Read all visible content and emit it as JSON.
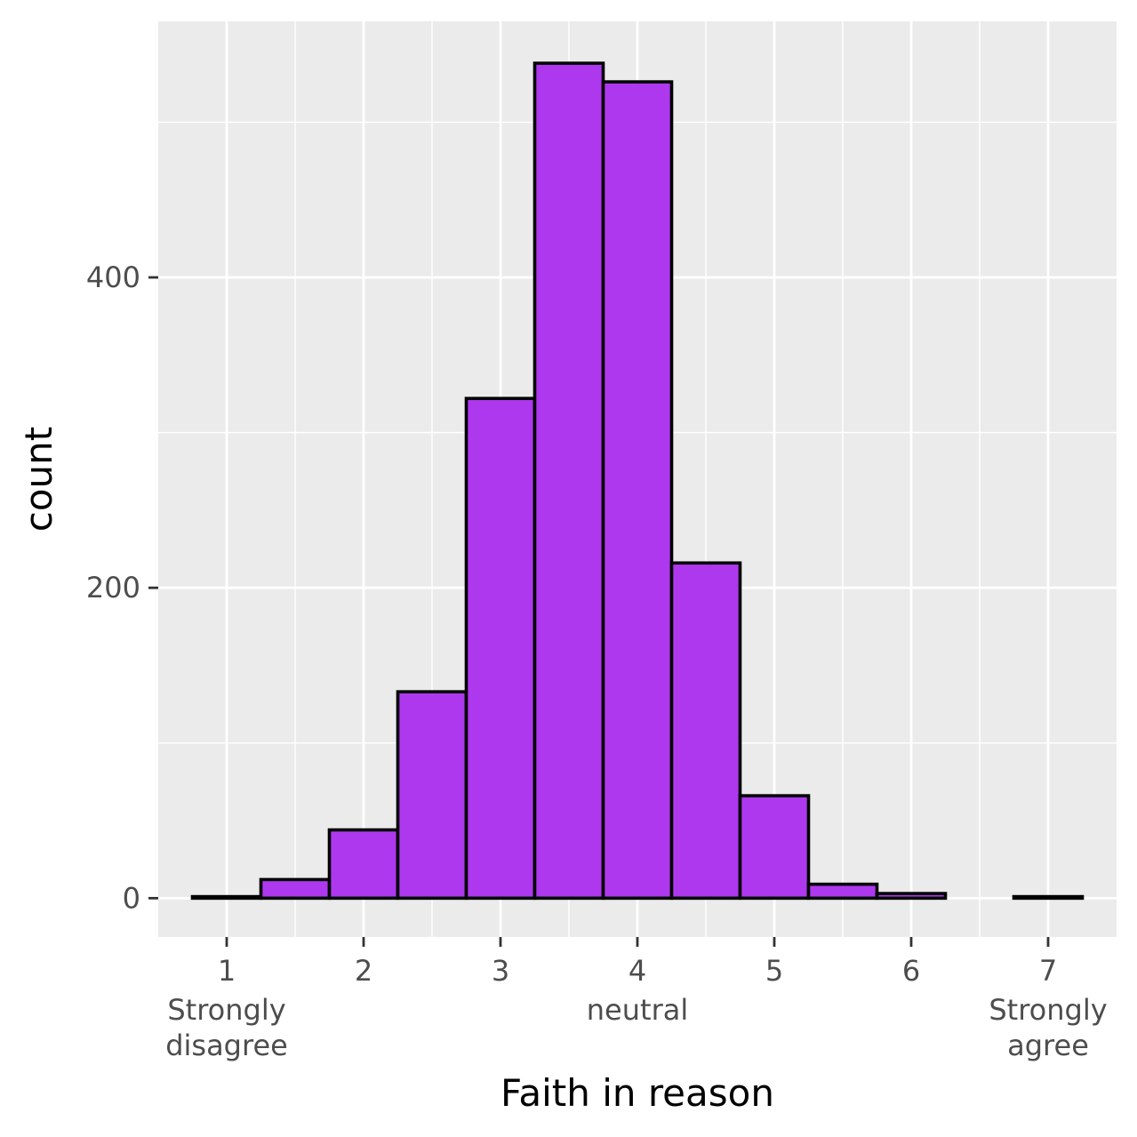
{
  "chart_data": {
    "type": "bar",
    "subtype": "histogram",
    "xlabel": "Faith in reason",
    "ylabel": "count",
    "xlim": [
      0.5,
      7.5
    ],
    "ylim": [
      -25,
      565
    ],
    "bins": [
      {
        "x0": 0.75,
        "x1": 1.25,
        "count": 1
      },
      {
        "x0": 1.25,
        "x1": 1.75,
        "count": 12
      },
      {
        "x0": 1.75,
        "x1": 2.25,
        "count": 44
      },
      {
        "x0": 2.25,
        "x1": 2.75,
        "count": 133
      },
      {
        "x0": 2.75,
        "x1": 3.25,
        "count": 322
      },
      {
        "x0": 3.25,
        "x1": 3.75,
        "count": 538
      },
      {
        "x0": 3.75,
        "x1": 4.25,
        "count": 526
      },
      {
        "x0": 4.25,
        "x1": 4.75,
        "count": 216
      },
      {
        "x0": 4.75,
        "x1": 5.25,
        "count": 66
      },
      {
        "x0": 5.25,
        "x1": 5.75,
        "count": 9
      },
      {
        "x0": 5.75,
        "x1": 6.25,
        "count": 3
      },
      {
        "x0": 6.25,
        "x1": 6.75,
        "count": 0
      },
      {
        "x0": 6.75,
        "x1": 7.25,
        "count": 1
      }
    ],
    "x_ticks": [
      {
        "value": 1,
        "label": "1",
        "sublabel": [
          "Strongly",
          "disagree"
        ]
      },
      {
        "value": 2,
        "label": "2",
        "sublabel": []
      },
      {
        "value": 3,
        "label": "3",
        "sublabel": []
      },
      {
        "value": 4,
        "label": "4",
        "sublabel": [
          "neutral"
        ]
      },
      {
        "value": 5,
        "label": "5",
        "sublabel": []
      },
      {
        "value": 6,
        "label": "6",
        "sublabel": []
      },
      {
        "value": 7,
        "label": "7",
        "sublabel": [
          "Strongly",
          "agree"
        ]
      }
    ],
    "x_minor_ticks": [
      1.5,
      2.5,
      3.5,
      4.5,
      5.5,
      6.5
    ],
    "y_ticks": [
      {
        "value": 0,
        "label": "0"
      },
      {
        "value": 200,
        "label": "200"
      },
      {
        "value": 400,
        "label": "400"
      }
    ],
    "y_minor_ticks": [
      100,
      300,
      500
    ],
    "grid": true,
    "legend": "none",
    "colors": {
      "bar_fill": "#AE38EE",
      "bar_stroke": "#000000",
      "panel_background": "#EBEBEB",
      "grid": "#FFFFFF",
      "tick_label": "#4D4D4D",
      "axis_title": "#000000"
    }
  }
}
